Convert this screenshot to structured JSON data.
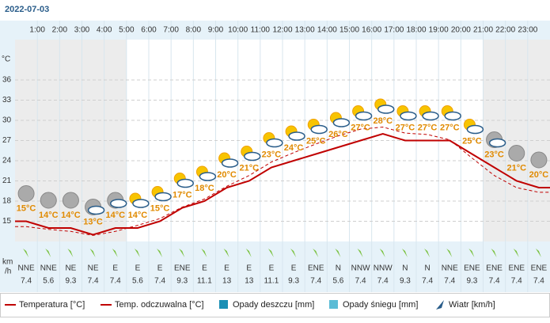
{
  "chart_data": {
    "type": "line",
    "title": "2022-07-03",
    "y_axis_label": "°C",
    "hours": [
      "1:00",
      "2:00",
      "3:00",
      "4:00",
      "5:00",
      "6:00",
      "7:00",
      "8:00",
      "9:00",
      "10:00",
      "11:00",
      "12:00",
      "13:00",
      "14:00",
      "15:00",
      "16:00",
      "17:00",
      "18:00",
      "19:00",
      "20:00",
      "21:00",
      "22:00",
      "23:00"
    ],
    "x": [
      0.5,
      1.5,
      2.5,
      3.5,
      4.5,
      5.5,
      6.5,
      7.5,
      8.5,
      9.5,
      10.5,
      11.5,
      12.5,
      13.5,
      14.5,
      15.5,
      16.5,
      17.5,
      18.5,
      19.5,
      20.5,
      21.5,
      22.5,
      23.5
    ],
    "xlim": [
      0,
      24
    ],
    "ylim": [
      12,
      42
    ],
    "yticks": [
      15,
      18,
      21,
      24,
      27,
      30,
      33,
      36
    ],
    "grid": true,
    "series": [
      {
        "name": "Temperatura [°C]",
        "color": "#c00000",
        "style": "solid",
        "values": [
          15,
          14,
          14,
          13,
          14,
          14,
          15,
          17,
          18,
          20,
          21,
          23,
          24,
          25,
          26,
          27,
          28,
          27,
          27,
          27,
          25,
          23,
          21,
          20
        ],
        "value_labels": [
          "15°C",
          "14°C",
          "14°C",
          "13°C",
          "14°C",
          "14°C",
          "15°C",
          "17°C",
          "18°C",
          "20°C",
          "21°C",
          "23°C",
          "24°C",
          "25°C",
          "26°C",
          "27°C",
          "28°C",
          "27°C",
          "27°C",
          "27°C",
          "25°C",
          "23°C",
          "21°C",
          "20°C"
        ]
      },
      {
        "name": "Temp. odczuwalna [°C]",
        "color": "#c00000",
        "style": "dashed",
        "values": [
          14.2,
          13.8,
          13.5,
          12.9,
          13.5,
          14.4,
          15.4,
          17.1,
          18.3,
          20.2,
          21.8,
          23.8,
          25.2,
          26.5,
          27.7,
          28.7,
          29,
          28.1,
          27.9,
          27.1,
          24.4,
          21.8,
          20,
          19.3
        ]
      }
    ],
    "precipitation_series": [
      {
        "name": "Opady deszczu [mm]",
        "color": "#1a8fb5"
      },
      {
        "name": "Opady śniegu [mm]",
        "color": "#5bbcd6"
      }
    ],
    "wind": {
      "name": "Wiatr [km/h]",
      "unit_label": [
        "km",
        "/h"
      ],
      "color": "#7cc243",
      "directions": [
        "NNE",
        "NNE",
        "NE",
        "NE",
        "E",
        "E",
        "E",
        "ENE",
        "E",
        "E",
        "E",
        "E",
        "E",
        "ENE",
        "N",
        "NNW",
        "NNW",
        "N",
        "N",
        "NNE",
        "ENE",
        "ENE",
        "ENE",
        "ENE"
      ],
      "speeds": [
        7.4,
        5.6,
        9.3,
        7.4,
        7.4,
        5.6,
        7.4,
        9.3,
        11.1,
        13,
        13,
        11.1,
        9.3,
        7.4,
        5.6,
        7.4,
        7.4,
        9.3,
        7.4,
        7.4,
        9.3,
        7.4,
        7.4,
        7.4
      ]
    }
  }
}
